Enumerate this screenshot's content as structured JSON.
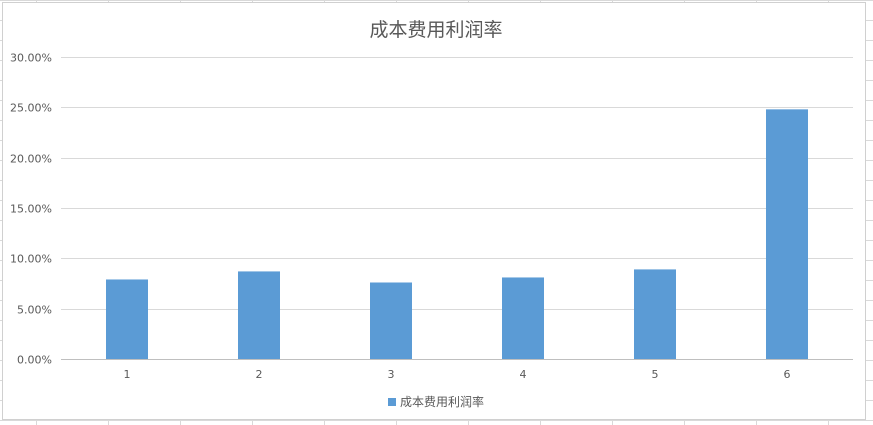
{
  "chart_data": {
    "type": "bar",
    "title": "成本费用利润率",
    "xlabel": "",
    "ylabel": "",
    "categories": [
      "1",
      "2",
      "3",
      "4",
      "5",
      "6"
    ],
    "series": [
      {
        "name": "成本费用利润率",
        "values": [
          0.079,
          0.087,
          0.076,
          0.081,
          0.089,
          0.248
        ]
      }
    ],
    "ylim": [
      0,
      0.3
    ],
    "yticks": [
      0,
      0.05,
      0.1,
      0.15,
      0.2,
      0.25,
      0.3
    ],
    "ytick_labels": [
      "0.00%",
      "5.00%",
      "10.00%",
      "15.00%",
      "20.00%",
      "25.00%",
      "30.00%"
    ],
    "grid": true,
    "legend_position": "bottom",
    "colors": {
      "bar": "#5b9bd5",
      "grid": "#d9d9d9",
      "axis": "#bfbfbf",
      "text": "#595959"
    }
  }
}
